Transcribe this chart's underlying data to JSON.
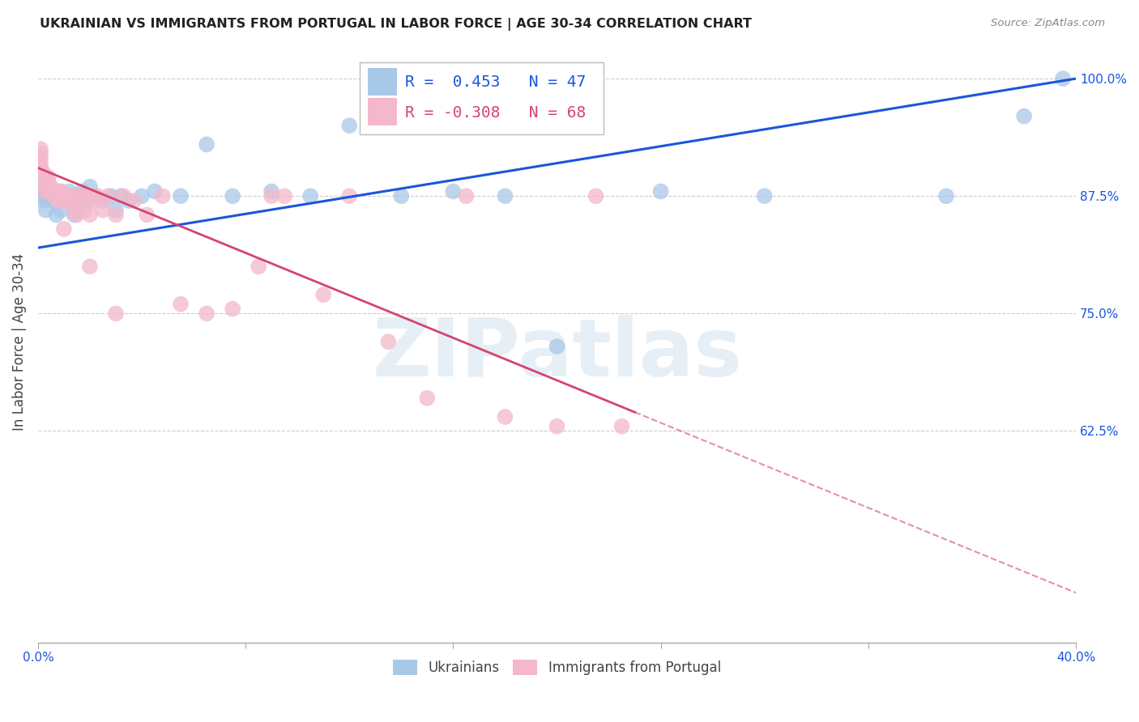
{
  "title": "UKRAINIAN VS IMMIGRANTS FROM PORTUGAL IN LABOR FORCE | AGE 30-34 CORRELATION CHART",
  "source": "Source: ZipAtlas.com",
  "ylabel": "In Labor Force | Age 30-34",
  "x_min": 0.0,
  "x_max": 0.4,
  "y_min": 0.4,
  "y_max": 1.04,
  "x_ticks": [
    0.0,
    0.08,
    0.16,
    0.24,
    0.32,
    0.4
  ],
  "x_tick_labels": [
    "0.0%",
    "",
    "",
    "",
    "",
    "40.0%"
  ],
  "y_ticks": [
    0.625,
    0.75,
    0.875,
    1.0
  ],
  "y_tick_labels": [
    "62.5%",
    "75.0%",
    "87.5%",
    "100.0%"
  ],
  "blue_color": "#a8c8e8",
  "pink_color": "#f4b8ca",
  "trendline_blue": "#1a56db",
  "trendline_pink": "#d44470",
  "legend_R_blue": "0.453",
  "legend_N_blue": "47",
  "legend_R_pink": "-0.308",
  "legend_N_pink": "68",
  "watermark": "ZIPatlas",
  "blue_points_x": [
    0.001,
    0.001,
    0.001,
    0.002,
    0.002,
    0.003,
    0.004,
    0.005,
    0.005,
    0.006,
    0.007,
    0.008,
    0.009,
    0.01,
    0.011,
    0.012,
    0.013,
    0.014,
    0.015,
    0.016,
    0.017,
    0.018,
    0.019,
    0.02,
    0.022,
    0.025,
    0.028,
    0.03,
    0.032,
    0.035,
    0.04,
    0.045,
    0.055,
    0.065,
    0.075,
    0.09,
    0.105,
    0.12,
    0.14,
    0.16,
    0.18,
    0.2,
    0.24,
    0.28,
    0.35,
    0.38,
    0.395
  ],
  "blue_points_y": [
    0.88,
    0.885,
    0.875,
    0.87,
    0.88,
    0.86,
    0.875,
    0.875,
    0.88,
    0.87,
    0.855,
    0.88,
    0.86,
    0.875,
    0.87,
    0.88,
    0.87,
    0.855,
    0.86,
    0.875,
    0.88,
    0.875,
    0.87,
    0.885,
    0.875,
    0.87,
    0.875,
    0.86,
    0.875,
    0.87,
    0.875,
    0.88,
    0.875,
    0.93,
    0.875,
    0.88,
    0.875,
    0.95,
    0.875,
    0.88,
    0.875,
    0.715,
    0.88,
    0.875,
    0.875,
    0.96,
    1.0
  ],
  "pink_points_x": [
    0.001,
    0.001,
    0.001,
    0.001,
    0.001,
    0.001,
    0.002,
    0.002,
    0.003,
    0.003,
    0.004,
    0.004,
    0.005,
    0.005,
    0.006,
    0.006,
    0.007,
    0.007,
    0.008,
    0.008,
    0.009,
    0.009,
    0.01,
    0.01,
    0.01,
    0.011,
    0.012,
    0.013,
    0.014,
    0.015,
    0.015,
    0.016,
    0.017,
    0.018,
    0.019,
    0.02,
    0.021,
    0.022,
    0.023,
    0.025,
    0.027,
    0.03,
    0.033,
    0.037,
    0.042,
    0.048,
    0.055,
    0.065,
    0.075,
    0.085,
    0.095,
    0.11,
    0.12,
    0.135,
    0.15,
    0.165,
    0.18,
    0.2,
    0.215,
    0.225,
    0.155,
    0.16,
    0.17,
    0.185,
    0.09,
    0.01,
    0.02,
    0.03
  ],
  "pink_points_y": [
    0.9,
    0.905,
    0.91,
    0.915,
    0.92,
    0.925,
    0.9,
    0.895,
    0.88,
    0.885,
    0.895,
    0.89,
    0.88,
    0.885,
    0.875,
    0.88,
    0.875,
    0.88,
    0.875,
    0.87,
    0.88,
    0.875,
    0.875,
    0.87,
    0.875,
    0.875,
    0.87,
    0.875,
    0.86,
    0.855,
    0.875,
    0.87,
    0.875,
    0.86,
    0.875,
    0.855,
    0.875,
    0.87,
    0.875,
    0.86,
    0.875,
    0.855,
    0.875,
    0.87,
    0.855,
    0.875,
    0.76,
    0.75,
    0.755,
    0.8,
    0.875,
    0.77,
    0.875,
    0.72,
    0.66,
    0.875,
    0.64,
    0.63,
    0.875,
    0.63,
    1.0,
    1.0,
    1.0,
    1.0,
    0.875,
    0.84,
    0.8,
    0.75
  ],
  "blue_trend_x0": 0.0,
  "blue_trend_y0": 0.82,
  "blue_trend_x1": 0.4,
  "blue_trend_y1": 1.0,
  "pink_trend_x0": 0.0,
  "pink_trend_y0": 0.905,
  "pink_trend_x1": 0.23,
  "pink_trend_y1": 0.645
}
